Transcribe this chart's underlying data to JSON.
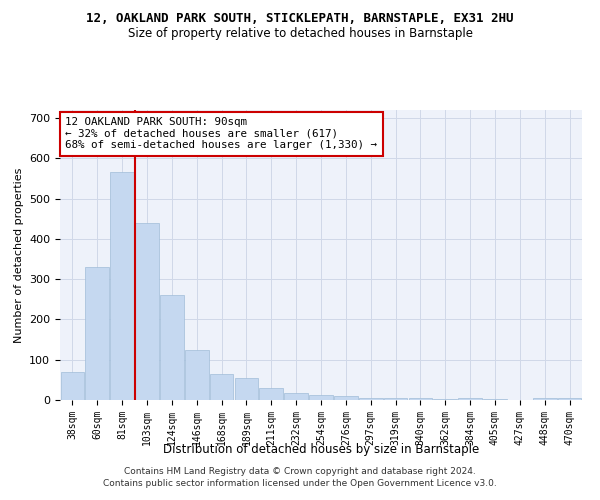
{
  "title": "12, OAKLAND PARK SOUTH, STICKLEPATH, BARNSTAPLE, EX31 2HU",
  "subtitle": "Size of property relative to detached houses in Barnstaple",
  "xlabel": "Distribution of detached houses by size in Barnstaple",
  "ylabel": "Number of detached properties",
  "categories": [
    "38sqm",
    "60sqm",
    "81sqm",
    "103sqm",
    "124sqm",
    "146sqm",
    "168sqm",
    "189sqm",
    "211sqm",
    "232sqm",
    "254sqm",
    "276sqm",
    "297sqm",
    "319sqm",
    "340sqm",
    "362sqm",
    "384sqm",
    "405sqm",
    "427sqm",
    "448sqm",
    "470sqm"
  ],
  "values": [
    70,
    330,
    565,
    440,
    260,
    125,
    65,
    55,
    30,
    18,
    12,
    10,
    5,
    5,
    4,
    3,
    5,
    3,
    0,
    5,
    4
  ],
  "bar_color": "#c5d8f0",
  "bar_edge_color": "#a0bcd8",
  "red_line_x": 2.5,
  "annotation_text": "12 OAKLAND PARK SOUTH: 90sqm\n← 32% of detached houses are smaller (617)\n68% of semi-detached houses are larger (1,330) →",
  "annotation_box_color": "#ffffff",
  "annotation_box_edge_color": "#cc0000",
  "ylim": [
    0,
    720
  ],
  "yticks": [
    0,
    100,
    200,
    300,
    400,
    500,
    600,
    700
  ],
  "grid_color": "#d0d8e8",
  "background_color": "#eef2fa",
  "footer1": "Contains HM Land Registry data © Crown copyright and database right 2024.",
  "footer2": "Contains public sector information licensed under the Open Government Licence v3.0."
}
